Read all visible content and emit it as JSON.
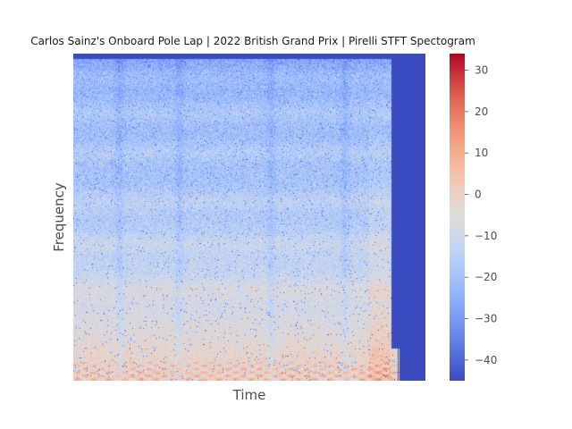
{
  "chart_data": {
    "type": "heatmap",
    "title": "Carlos Sainz's Onboard Pole Lap | 2022 British Grand Prix | Pirelli STFT Spectogram",
    "xlabel": "Time",
    "ylabel": "Frequency",
    "x_ticks": [],
    "y_ticks": [],
    "colormap": "coolwarm",
    "colorbar": {
      "range": [
        -45,
        34
      ],
      "ticks": [
        30,
        20,
        10,
        0,
        -10,
        -20,
        -30,
        -40
      ],
      "tick_labels": [
        "30",
        "20",
        "10",
        "0",
        "−10",
        "−20",
        "−30",
        "−40"
      ]
    },
    "value_range": [
      -45,
      34
    ],
    "signal_fraction_of_time_axis": 0.9,
    "description_of_values": "Low frequencies near 0 to +30 (red/orange), high frequencies near -15 to -30 (light blue), trailing region after signal end at -45 (dark blue)",
    "grid": false
  }
}
